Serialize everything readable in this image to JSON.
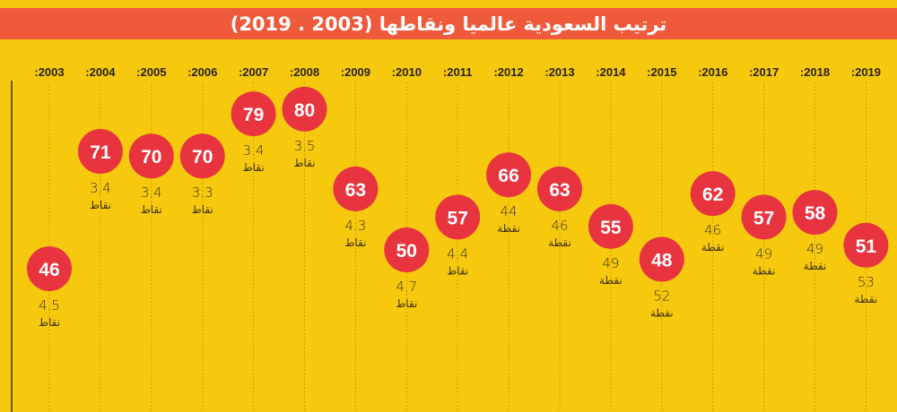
{
  "chart_data": {
    "type": "scatter",
    "title": "ترتيب السعودية عالميا ونقاطها (2003 . 2019)",
    "categories": [
      ":2003",
      ":2004",
      ":2005",
      ":2006",
      ":2007",
      ":2008",
      ":2009",
      ":2010",
      ":2011",
      ":2012",
      ":2013",
      ":2014",
      ":2015",
      ":2016",
      ":2017",
      ":2018",
      ":2019"
    ],
    "x": [
      2003,
      2004,
      2005,
      2006,
      2007,
      2008,
      2009,
      2010,
      2011,
      2012,
      2013,
      2014,
      2015,
      2016,
      2017,
      2018,
      2019
    ],
    "ranks": [
      46,
      71,
      70,
      70,
      79,
      80,
      63,
      50,
      57,
      66,
      63,
      55,
      48,
      62,
      57,
      58,
      51
    ],
    "points": [
      "4.5",
      "3.4",
      "3.4",
      "3.3",
      "3.4",
      "3.5",
      "4.3",
      "4.7",
      "4.4",
      "44",
      "46",
      "49",
      "52",
      "46",
      "49",
      "49",
      "53"
    ],
    "units": [
      "نقاط",
      "نقاط",
      "نقاط",
      "نقاط",
      "نقاط",
      "نقاط",
      "نقاط",
      "نقاط",
      "نقاط",
      "نقطة",
      "نقطة",
      "نقطة",
      "نقطة",
      "نقطة",
      "نقطة",
      "نقطة",
      "نقطة"
    ],
    "grid": "vertical dotted",
    "colors": {
      "background": "#F6C90E",
      "title_bar": "#F05A3C",
      "marker": "#E8343F",
      "marker_text": "#FFFFFF",
      "text": "#3D3210"
    }
  }
}
